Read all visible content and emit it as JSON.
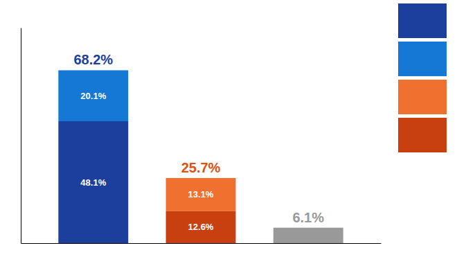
{
  "chart_data": {
    "type": "bar",
    "stacked": true,
    "data_labels": true,
    "tick_labels": false,
    "categories": [
      null,
      null,
      null
    ],
    "series": [
      {
        "values": [
          48.1,
          12.6,
          6.1
        ],
        "value_labels": [
          "48.1%",
          "12.6%",
          null
        ],
        "colors": [
          "#1c3f9e",
          "#c94010",
          "#999999"
        ]
      },
      {
        "values": [
          20.1,
          13.1,
          null
        ],
        "value_labels": [
          "20.1%",
          "13.1%",
          null
        ],
        "colors": [
          "#1478d4",
          "#f07030",
          null
        ]
      }
    ],
    "annotations": [
      {
        "text": "68.2%",
        "value": 68.2,
        "color": "#1c3f9e"
      },
      {
        "text": "25.7%",
        "value": 25.7,
        "color": "#e05010"
      },
      {
        "text": "6.1%",
        "value": 6.1,
        "color": "#999999"
      }
    ],
    "ylim": [
      0,
      85
    ],
    "legend": "top-right",
    "legend_colors": [
      "#1c3f9e",
      "#1478d4",
      "#f07030",
      "#c94010"
    ]
  }
}
